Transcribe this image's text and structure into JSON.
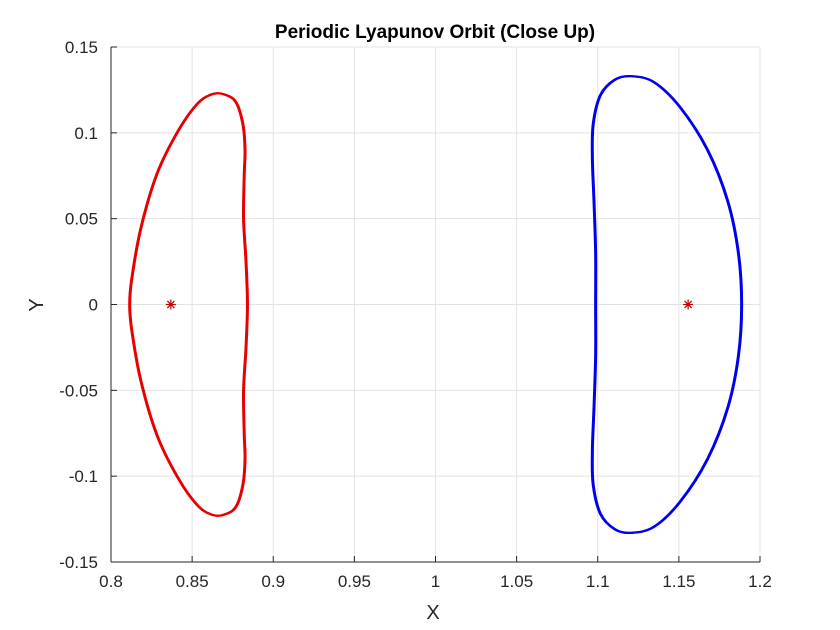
{
  "chart_data": {
    "type": "line",
    "title": "Periodic Lyapunov Orbit (Close Up)",
    "xlabel": "X",
    "ylabel": "Y",
    "xlim": [
      0.8,
      1.2
    ],
    "ylim": [
      -0.15,
      0.15
    ],
    "x_ticks": [
      "0.8",
      "0.85",
      "0.9",
      "0.95",
      "1",
      "1.05",
      "1.1",
      "1.15",
      "1.2"
    ],
    "y_ticks": [
      "-0.15",
      "-0.1",
      "-0.05",
      "0",
      "0.05",
      "0.1",
      "0.15"
    ],
    "grid": true,
    "series": [
      {
        "color": "#e60000",
        "points": [
          [
            0.8838,
            0.0
          ],
          [
            0.8829,
            0.025
          ],
          [
            0.8814,
            0.05
          ],
          [
            0.8818,
            0.075
          ],
          [
            0.8823,
            0.09
          ],
          [
            0.881,
            0.105
          ],
          [
            0.8766,
            0.118
          ],
          [
            0.869,
            0.1225
          ],
          [
            0.862,
            0.1225
          ],
          [
            0.853,
            0.117
          ],
          [
            0.841,
            0.101
          ],
          [
            0.828,
            0.076
          ],
          [
            0.818,
            0.044
          ],
          [
            0.8125,
            0.015
          ],
          [
            0.8112,
            0.0
          ],
          [
            0.8125,
            -0.015
          ],
          [
            0.818,
            -0.044
          ],
          [
            0.828,
            -0.076
          ],
          [
            0.841,
            -0.101
          ],
          [
            0.853,
            -0.117
          ],
          [
            0.862,
            -0.1225
          ],
          [
            0.869,
            -0.1225
          ],
          [
            0.8766,
            -0.118
          ],
          [
            0.881,
            -0.105
          ],
          [
            0.8823,
            -0.09
          ],
          [
            0.8818,
            -0.075
          ],
          [
            0.8814,
            -0.05
          ],
          [
            0.8829,
            -0.025
          ],
          [
            0.8838,
            0.0
          ]
        ]
      },
      {
        "color": "#0000ee",
        "points": [
          [
            1.189,
            0.0
          ],
          [
            1.187,
            0.03
          ],
          [
            1.1805,
            0.06
          ],
          [
            1.168,
            0.09
          ],
          [
            1.151,
            0.115
          ],
          [
            1.135,
            0.1295
          ],
          [
            1.121,
            0.133
          ],
          [
            1.111,
            0.131
          ],
          [
            1.102,
            0.122
          ],
          [
            1.0975,
            0.105
          ],
          [
            1.097,
            0.085
          ],
          [
            1.098,
            0.06
          ],
          [
            1.099,
            0.03
          ],
          [
            1.099,
            0.0
          ],
          [
            1.099,
            -0.03
          ],
          [
            1.098,
            -0.06
          ],
          [
            1.097,
            -0.085
          ],
          [
            1.0975,
            -0.105
          ],
          [
            1.102,
            -0.122
          ],
          [
            1.111,
            -0.131
          ],
          [
            1.121,
            -0.133
          ],
          [
            1.135,
            -0.1295
          ],
          [
            1.151,
            -0.115
          ],
          [
            1.168,
            -0.09
          ],
          [
            1.1805,
            -0.06
          ],
          [
            1.187,
            -0.03
          ],
          [
            1.189,
            0.0
          ]
        ]
      }
    ],
    "markers": [
      {
        "x": 0.8369,
        "y": 0.0,
        "symbol": "asterisk",
        "color": "#c00000"
      },
      {
        "x": 1.1557,
        "y": 0.0,
        "symbol": "asterisk",
        "color": "#c00000"
      }
    ]
  }
}
